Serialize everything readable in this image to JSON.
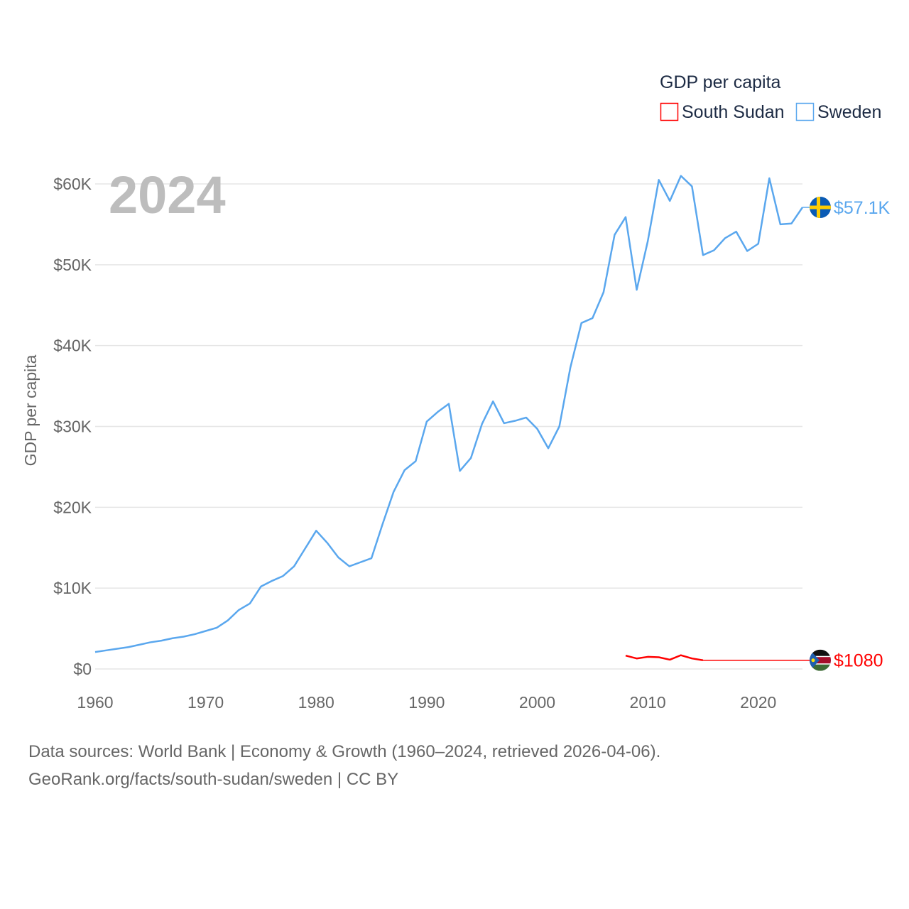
{
  "chart_data": {
    "type": "line",
    "title": "",
    "year_label": "2024",
    "xlabel": "",
    "ylabel": "GDP per capita",
    "xlim": [
      1960,
      2024
    ],
    "ylim": [
      0,
      60000
    ],
    "x_ticks": [
      1960,
      1970,
      1980,
      1990,
      2000,
      2010,
      2020
    ],
    "x_tick_labels": [
      "1960",
      "1970",
      "1980",
      "1990",
      "2000",
      "2010",
      "2020"
    ],
    "y_ticks": [
      0,
      10000,
      20000,
      30000,
      40000,
      50000,
      60000
    ],
    "y_tick_labels": [
      "$0",
      "$10K",
      "$20K",
      "$30K",
      "$40K",
      "$50K",
      "$60K"
    ],
    "grid": true,
    "legend": {
      "title": "GDP per capita",
      "placement": "top-right"
    },
    "series": [
      {
        "name": "South Sudan",
        "color": "#ff0000",
        "end_label": "$1080",
        "flag": "south-sudan-flag",
        "x": [
          2008,
          2009,
          2010,
          2011,
          2012,
          2013,
          2014,
          2015
        ],
        "values": [
          1650,
          1300,
          1500,
          1450,
          1150,
          1700,
          1300,
          1080
        ]
      },
      {
        "name": "Sweden",
        "color": "#5aa7ee",
        "end_label": "$57.1K",
        "flag": "sweden-flag",
        "x": [
          1960,
          1961,
          1962,
          1963,
          1964,
          1965,
          1966,
          1967,
          1968,
          1969,
          1970,
          1971,
          1972,
          1973,
          1974,
          1975,
          1976,
          1977,
          1978,
          1979,
          1980,
          1981,
          1982,
          1983,
          1984,
          1985,
          1986,
          1987,
          1988,
          1989,
          1990,
          1991,
          1992,
          1993,
          1994,
          1995,
          1996,
          1997,
          1998,
          1999,
          2000,
          2001,
          2002,
          2003,
          2004,
          2005,
          2006,
          2007,
          2008,
          2009,
          2010,
          2011,
          2012,
          2013,
          2014,
          2015,
          2016,
          2017,
          2018,
          2019,
          2020,
          2021,
          2022,
          2023,
          2024
        ],
        "values": [
          2100,
          2300,
          2500,
          2700,
          3000,
          3300,
          3500,
          3800,
          4000,
          4300,
          4700,
          5100,
          6000,
          7300,
          8100,
          10200,
          10900,
          11500,
          12700,
          14900,
          17100,
          15600,
          13800,
          12700,
          13200,
          13700,
          17900,
          21900,
          24600,
          25700,
          30600,
          31800,
          32800,
          24500,
          26100,
          30300,
          33100,
          30400,
          30700,
          31100,
          29700,
          27300,
          30000,
          37300,
          42800,
          43400,
          46600,
          53700,
          55900,
          46900,
          52900,
          60500,
          57900,
          61000,
          59700,
          51200,
          51800,
          53300,
          54100,
          51700,
          52600,
          60700,
          55000,
          55100,
          57100
        ]
      }
    ]
  },
  "footer": {
    "line1": "Data sources: World Bank | Economy & Growth (1960–2024, retrieved 2026-04-06).",
    "line2": "GeoRank.org/facts/south-sudan/sweden | CC BY"
  }
}
